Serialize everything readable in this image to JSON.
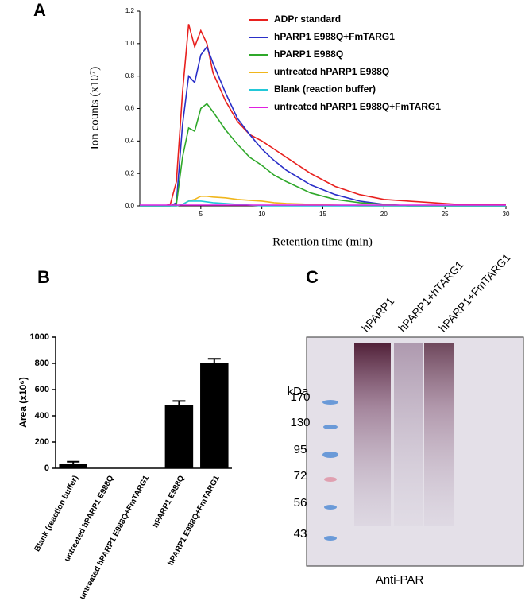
{
  "chart_data": [
    {
      "type": "line",
      "title": "A",
      "xlabel": "Retention time (min)",
      "ylabel": "Ion counts (x10⁷)",
      "x": [
        0,
        2,
        2.5,
        3,
        3.5,
        4,
        4.5,
        5,
        5.5,
        6,
        7,
        8,
        9,
        10,
        11,
        12,
        14,
        16,
        18,
        20,
        22,
        24,
        26,
        28,
        30
      ],
      "series": [
        {
          "name": "ADPr standard",
          "color": "#e8201e",
          "values": [
            0,
            0,
            0.01,
            0.15,
            0.7,
            1.12,
            0.98,
            1.08,
            1.0,
            0.82,
            0.65,
            0.52,
            0.44,
            0.4,
            0.35,
            0.3,
            0.2,
            0.12,
            0.07,
            0.04,
            0.03,
            0.02,
            0.01,
            0.01,
            0.01
          ]
        },
        {
          "name": "hPARP1 E988Q+FmTARG1",
          "color": "#2a2fc8",
          "values": [
            0,
            0,
            0,
            0.02,
            0.5,
            0.8,
            0.76,
            0.93,
            0.98,
            0.88,
            0.7,
            0.54,
            0.44,
            0.35,
            0.28,
            0.22,
            0.13,
            0.07,
            0.03,
            0.01,
            0,
            0,
            0,
            0,
            0
          ]
        },
        {
          "name": "hPARP1 E988Q",
          "color": "#2fa82a",
          "values": [
            0,
            0,
            0,
            0.01,
            0.3,
            0.48,
            0.46,
            0.6,
            0.63,
            0.58,
            0.47,
            0.38,
            0.3,
            0.25,
            0.19,
            0.15,
            0.08,
            0.04,
            0.02,
            0.01,
            0,
            0,
            0,
            0,
            0
          ]
        },
        {
          "name": "untreated hPARP1 E988Q",
          "color": "#f0b61c",
          "values": [
            0,
            0,
            0,
            0,
            0.01,
            0.03,
            0.04,
            0.06,
            0.06,
            0.055,
            0.05,
            0.04,
            0.035,
            0.03,
            0.02,
            0.015,
            0.01,
            0.005,
            0,
            0,
            0,
            0,
            0,
            0,
            0
          ]
        },
        {
          "name": "Blank (reaction buffer)",
          "color": "#22c8d8",
          "values": [
            0,
            0,
            0,
            0,
            0.01,
            0.03,
            0.03,
            0.03,
            0.025,
            0.02,
            0.015,
            0.01,
            0.005,
            0,
            0,
            0,
            0,
            0,
            0,
            0,
            0,
            0,
            0,
            0,
            0
          ]
        },
        {
          "name": "untreated hPARP1 E988Q+FmTARG1",
          "color": "#e020e0",
          "values": [
            0.005,
            0.005,
            0.005,
            0.005,
            0.005,
            0.005,
            0.005,
            0.005,
            0.005,
            0.005,
            0.005,
            0.005,
            0.005,
            0.005,
            0.005,
            0.005,
            0.005,
            0.005,
            0.005,
            0.005,
            0.005,
            0.005,
            0.005,
            0.005,
            0.005
          ]
        }
      ],
      "xlim": [
        0,
        30
      ],
      "xticks": [
        5,
        10,
        15,
        20,
        25,
        30
      ],
      "ylim": [
        0,
        1.2
      ],
      "yticks": [
        {
          "value": 0,
          "label": "0.0"
        },
        0.2,
        0.4,
        0.6,
        0.8,
        {
          "value": 1,
          "label": "1.0"
        },
        1.2
      ]
    },
    {
      "type": "bar",
      "title": "B",
      "ylabel": "Area (x10⁶)",
      "categories": [
        "Blank (reaction buffer)",
        "untreated hPARP1 E988Q",
        "untreated hPARP1 E988Q+FmTARG1",
        "hPARP1 E988Q",
        "hPARP1 E988Q+FmTARG1"
      ],
      "values": [
        35,
        0,
        0,
        483,
        800
      ],
      "errors": [
        15,
        0,
        0,
        30,
        35
      ],
      "color": "#000000",
      "ylim": [
        0,
        1000
      ],
      "yticks": [
        0,
        200,
        400,
        600,
        800,
        1000
      ]
    }
  ],
  "blot": {
    "title": "C",
    "lanes": [
      "hPARP1",
      "hPARP1+hTARG1",
      "hPARP1+FmTARG1"
    ],
    "unit": "kDa",
    "markers": [
      "170",
      "130",
      "95",
      "72",
      "56",
      "43"
    ],
    "caption": "Anti-PAR"
  }
}
